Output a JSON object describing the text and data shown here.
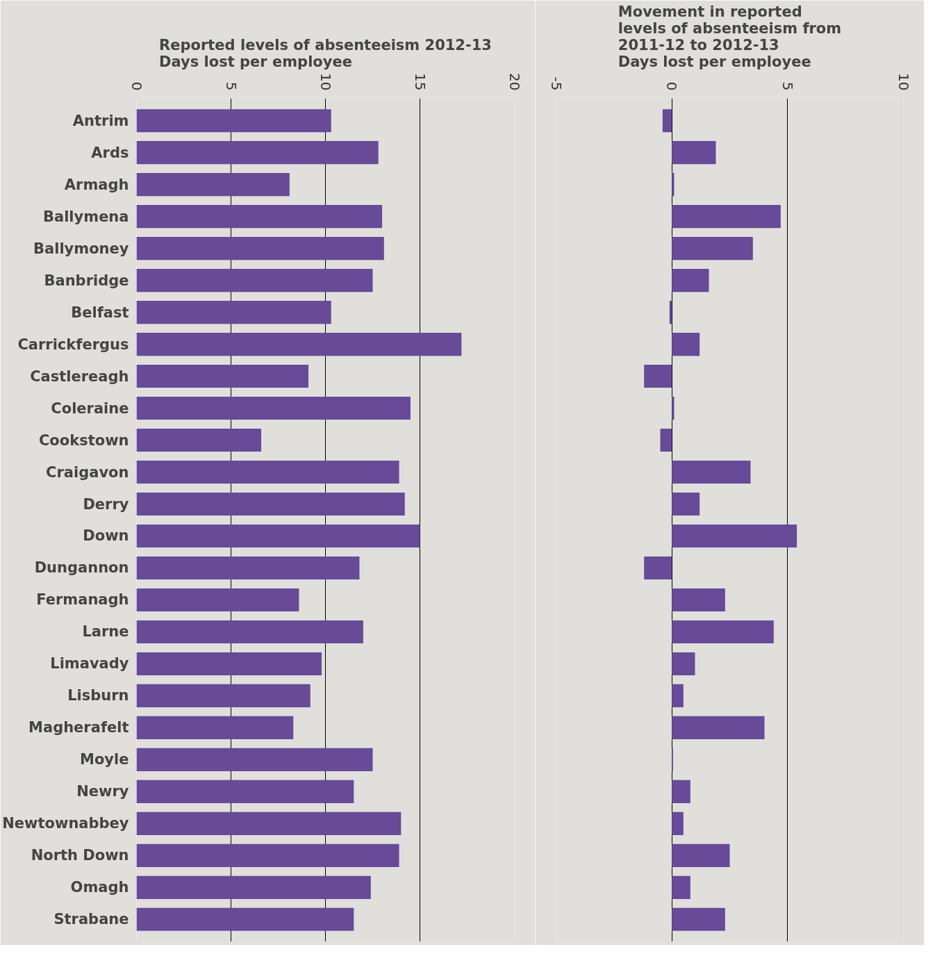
{
  "chart_data": [
    {
      "type": "bar",
      "orientation": "horizontal",
      "title": "Reported levels of absenteeism 2012-13\nDays lost per employee",
      "categories": [
        "Antrim",
        "Ards",
        "Armagh",
        "Ballymena",
        "Ballymoney",
        "Banbridge",
        "Belfast",
        "Carrickfergus",
        "Castlereagh",
        "Coleraine",
        "Cookstown",
        "Craigavon",
        "Derry",
        "Down",
        "Dungannon",
        "Fermanagh",
        "Larne",
        "Limavady",
        "Lisburn",
        "Magherafelt",
        "Moyle",
        "Newry",
        "Newtownabbey",
        "North Down",
        "Omagh",
        "Strabane"
      ],
      "color": "#674a98",
      "values": [
        10.3,
        12.8,
        8.1,
        13.0,
        13.1,
        12.5,
        10.3,
        17.2,
        9.1,
        14.5,
        6.6,
        13.9,
        14.2,
        15.0,
        11.8,
        8.6,
        12.0,
        9.8,
        9.2,
        8.3,
        12.5,
        11.5,
        14.0,
        13.9,
        12.4,
        11.5
      ],
      "xlim": [
        0,
        20
      ],
      "xticks": [
        0,
        5,
        10,
        15,
        20
      ],
      "grid": "x"
    },
    {
      "type": "bar",
      "orientation": "horizontal",
      "title": "Movement in reported\nlevels of absenteeism from\n2011-12 to 2012-13\nDays lost per employee",
      "categories": [
        null,
        null,
        null,
        null,
        null,
        null,
        null,
        null,
        null,
        null,
        null,
        null,
        null,
        null,
        null,
        null,
        null,
        null,
        null,
        null,
        null,
        null,
        null,
        null,
        null,
        null
      ],
      "color": "#674a98",
      "values": [
        -0.4,
        1.9,
        0.1,
        4.7,
        3.5,
        1.6,
        -0.1,
        1.2,
        -1.2,
        0.1,
        -0.5,
        3.4,
        1.2,
        5.4,
        -1.2,
        2.3,
        4.4,
        1.0,
        0.5,
        4.0,
        0.05,
        0.8,
        0.5,
        2.5,
        0.8,
        2.3
      ],
      "xlim": [
        -5,
        10
      ],
      "xticks": [
        -5,
        0,
        5,
        10
      ],
      "grid": "x"
    }
  ]
}
